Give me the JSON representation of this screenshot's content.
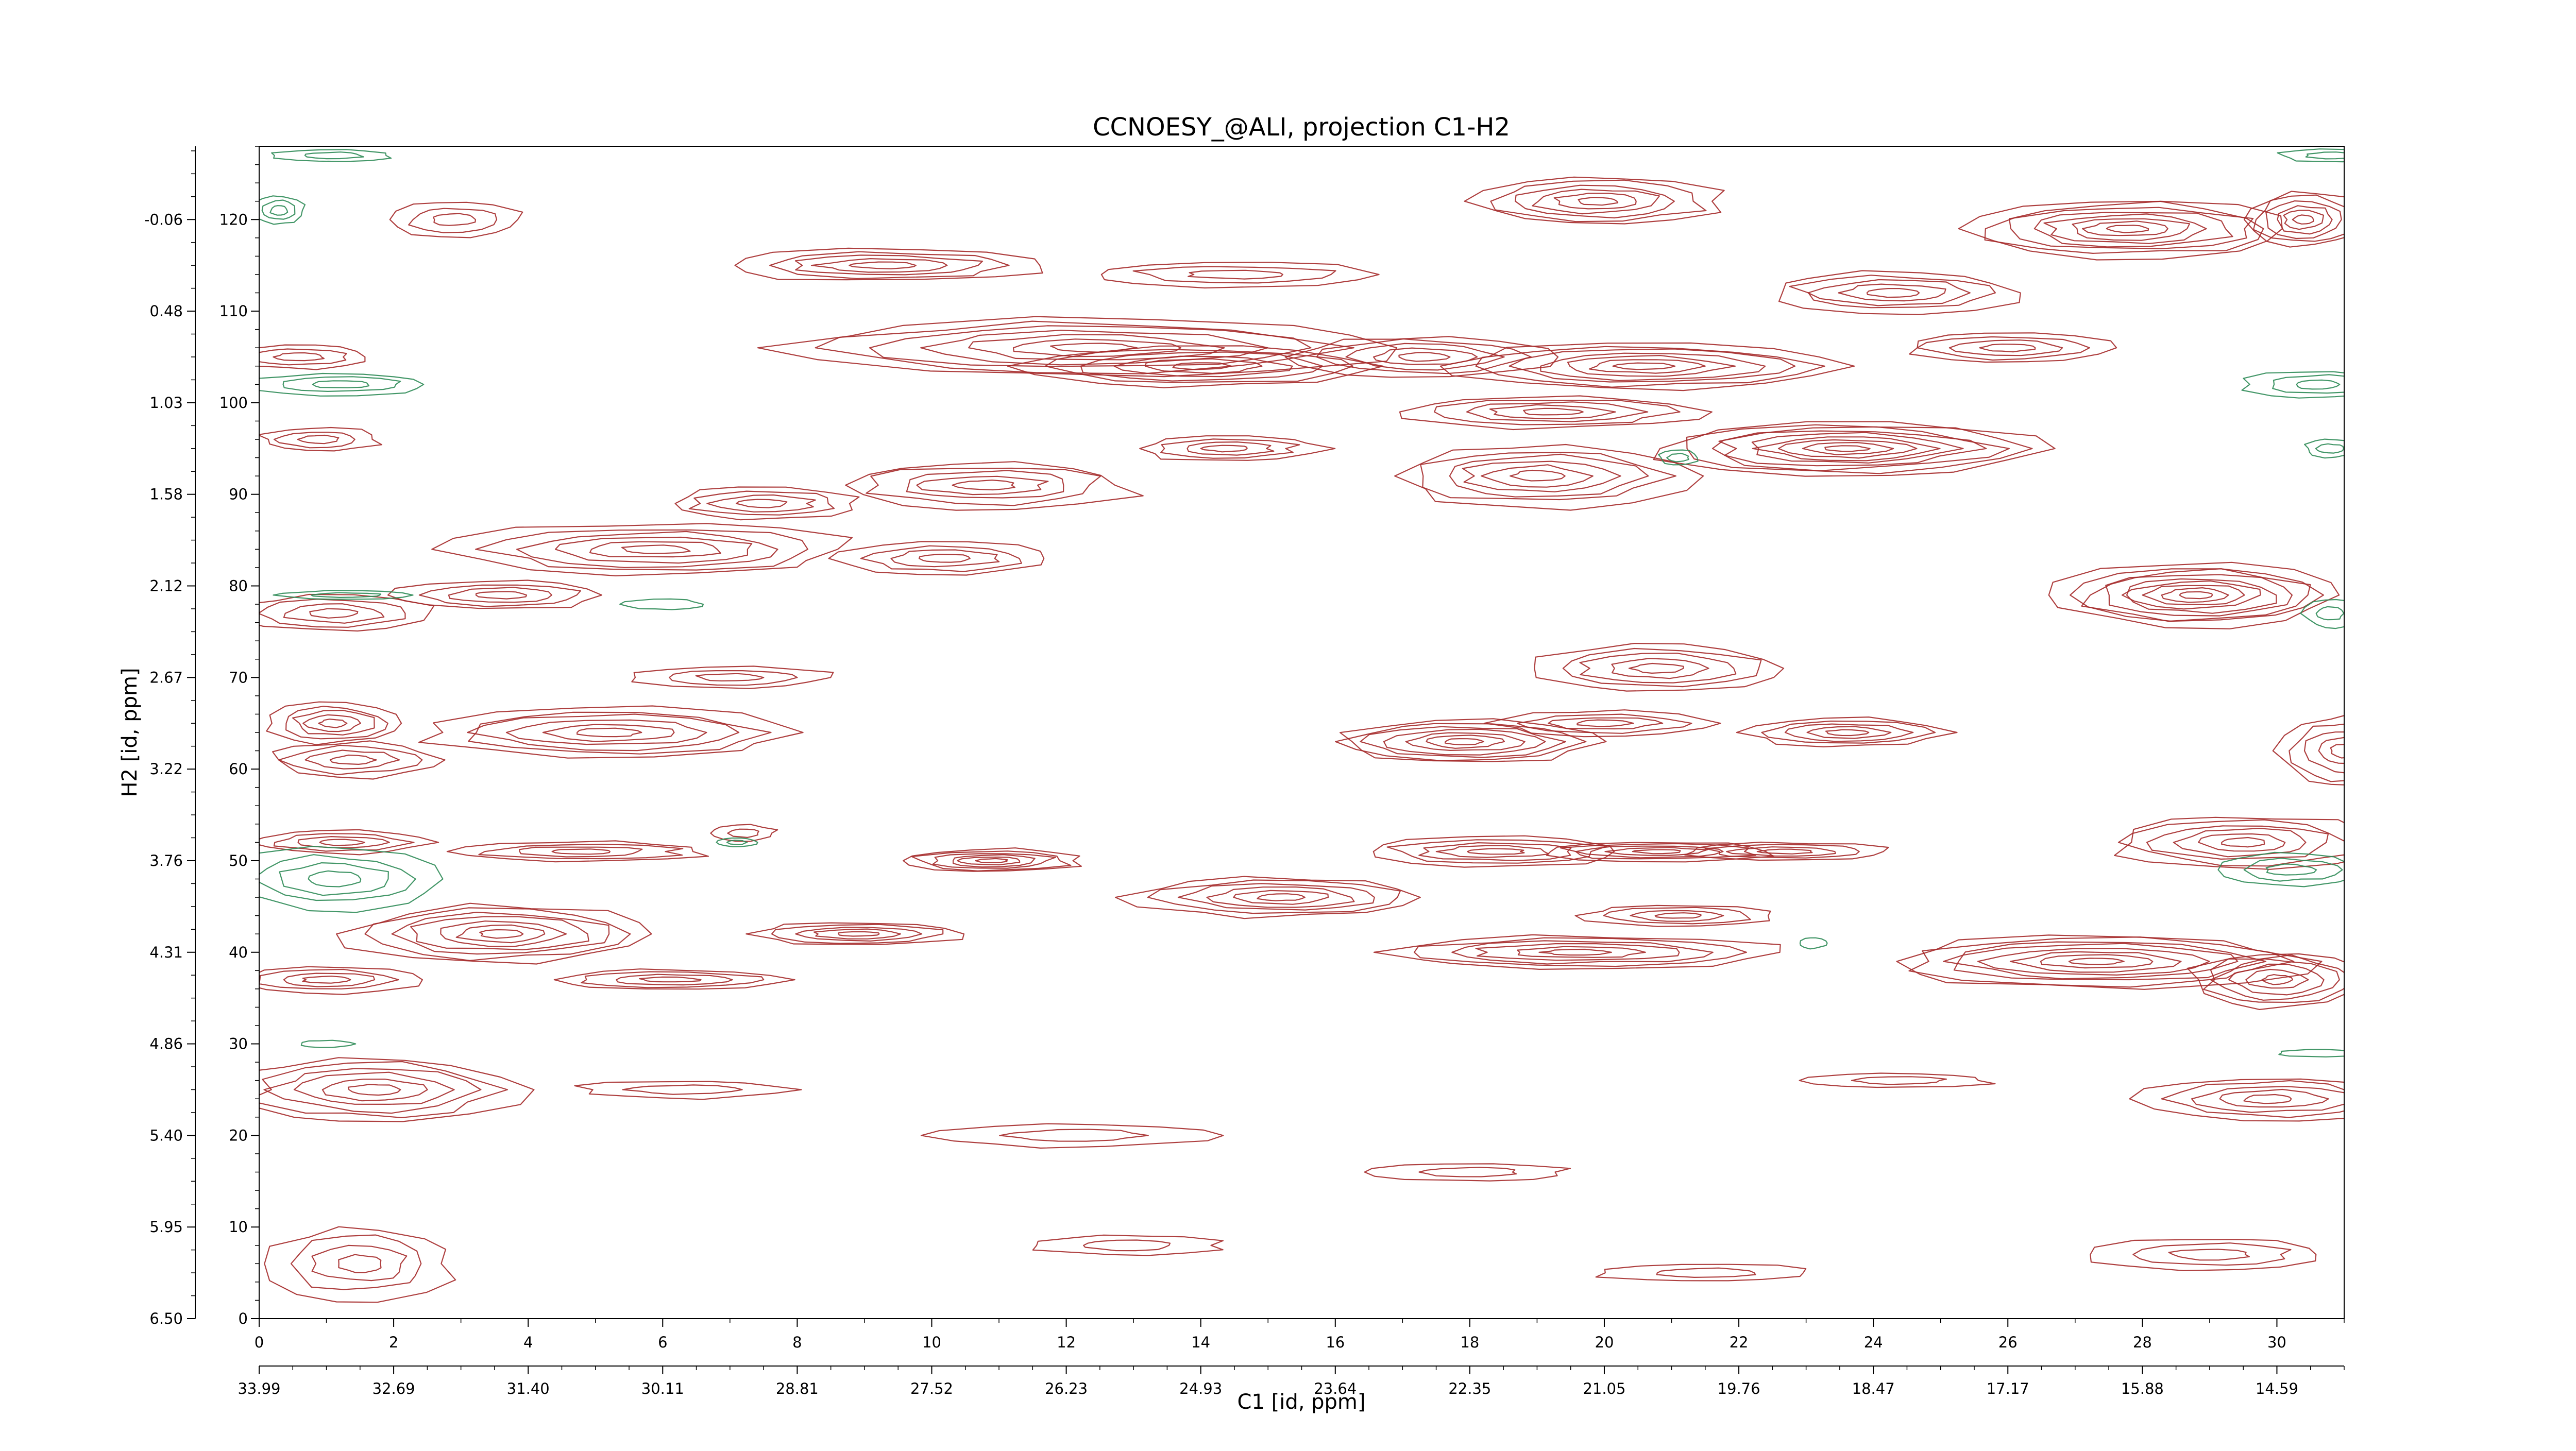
{
  "chart_data": {
    "type": "contour",
    "title": "CCNOESY_@ALI, projection C1-H2",
    "xlabel": "C1 [id, ppm]",
    "ylabel": "H2 [id, ppm]",
    "xlim": [
      0,
      31
    ],
    "ylim": [
      0,
      128
    ],
    "x_index_ticks": [
      "0",
      "2",
      "4",
      "6",
      "8",
      "10",
      "12",
      "14",
      "16",
      "18",
      "20",
      "22",
      "24",
      "26",
      "28",
      "30"
    ],
    "x_ppm_ticks": [
      "33.99",
      "32.69",
      "31.40",
      "30.11",
      "28.81",
      "27.52",
      "26.23",
      "24.93",
      "23.64",
      "22.35",
      "21.05",
      "19.76",
      "18.47",
      "17.17",
      "15.88",
      "14.59"
    ],
    "y_index_ticks": [
      "0",
      "10",
      "20",
      "30",
      "40",
      "50",
      "60",
      "70",
      "80",
      "90",
      "100",
      "110",
      "120"
    ],
    "y_ppm_ticks": [
      "6.50",
      "5.95",
      "5.40",
      "4.86",
      "4.31",
      "3.76",
      "3.22",
      "2.67",
      "2.12",
      "1.58",
      "1.03",
      "0.48",
      "-0.06"
    ],
    "grid": false,
    "colors": {
      "positive": "#a52a2a",
      "negative": "#2e8b57"
    },
    "series": [
      {
        "sign": "positive",
        "peaks": [
          {
            "x": 19.9,
            "y": 122,
            "rx": 1.9,
            "ry": 2.6,
            "levels": 6
          },
          {
            "x": 27.8,
            "y": 119,
            "rx": 2.5,
            "ry": 3.2,
            "levels": 8
          },
          {
            "x": 30.4,
            "y": 120,
            "rx": 0.9,
            "ry": 3.0,
            "levels": 6
          },
          {
            "x": 2.9,
            "y": 120,
            "rx": 1.0,
            "ry": 2.0,
            "levels": 3
          },
          {
            "x": 9.3,
            "y": 115,
            "rx": 2.4,
            "ry": 1.8,
            "levels": 5
          },
          {
            "x": 14.5,
            "y": 114,
            "rx": 2.2,
            "ry": 1.4,
            "levels": 3
          },
          {
            "x": 24.3,
            "y": 112,
            "rx": 1.9,
            "ry": 2.3,
            "levels": 5
          },
          {
            "x": 26.0,
            "y": 106,
            "rx": 1.6,
            "ry": 1.7,
            "levels": 4
          },
          {
            "x": 12.4,
            "y": 106,
            "rx": 4.4,
            "ry": 3.2,
            "levels": 7
          },
          {
            "x": 14.0,
            "y": 104,
            "rx": 2.6,
            "ry": 2.3,
            "levels": 6
          },
          {
            "x": 17.3,
            "y": 105,
            "rx": 1.9,
            "ry": 2.3,
            "levels": 5
          },
          {
            "x": 20.6,
            "y": 104,
            "rx": 2.9,
            "ry": 2.6,
            "levels": 7
          },
          {
            "x": 19.2,
            "y": 99,
            "rx": 2.2,
            "ry": 1.8,
            "levels": 5
          },
          {
            "x": 23.6,
            "y": 95,
            "rx": 2.8,
            "ry": 3.0,
            "levels": 9
          },
          {
            "x": 19.0,
            "y": 92,
            "rx": 2.2,
            "ry": 3.5,
            "levels": 6
          },
          {
            "x": 14.4,
            "y": 95,
            "rx": 1.4,
            "ry": 1.4,
            "levels": 4
          },
          {
            "x": 10.8,
            "y": 91,
            "rx": 2.3,
            "ry": 2.6,
            "levels": 5
          },
          {
            "x": 7.5,
            "y": 89,
            "rx": 1.5,
            "ry": 1.8,
            "levels": 4
          },
          {
            "x": 0.9,
            "y": 96,
            "rx": 0.9,
            "ry": 1.3,
            "levels": 3
          },
          {
            "x": 0.6,
            "y": 105,
            "rx": 1.1,
            "ry": 1.3,
            "levels": 3
          },
          {
            "x": 5.9,
            "y": 84,
            "rx": 3.0,
            "ry": 2.8,
            "levels": 6
          },
          {
            "x": 10.2,
            "y": 83,
            "rx": 1.6,
            "ry": 1.8,
            "levels": 4
          },
          {
            "x": 3.6,
            "y": 79,
            "rx": 1.6,
            "ry": 1.6,
            "levels": 4
          },
          {
            "x": 1.1,
            "y": 77,
            "rx": 1.5,
            "ry": 2.0,
            "levels": 4
          },
          {
            "x": 28.8,
            "y": 79,
            "rx": 2.2,
            "ry": 3.5,
            "levels": 9
          },
          {
            "x": 20.8,
            "y": 71,
            "rx": 1.9,
            "ry": 2.6,
            "levels": 5
          },
          {
            "x": 7.0,
            "y": 70,
            "rx": 1.5,
            "ry": 1.2,
            "levels": 3
          },
          {
            "x": 1.1,
            "y": 65,
            "rx": 1.0,
            "ry": 2.2,
            "levels": 5
          },
          {
            "x": 5.2,
            "y": 64,
            "rx": 2.8,
            "ry": 2.8,
            "levels": 6
          },
          {
            "x": 1.4,
            "y": 61,
            "rx": 1.3,
            "ry": 2.0,
            "levels": 4
          },
          {
            "x": 17.9,
            "y": 63,
            "rx": 2.0,
            "ry": 2.4,
            "levels": 7
          },
          {
            "x": 20.0,
            "y": 65,
            "rx": 1.6,
            "ry": 1.4,
            "levels": 4
          },
          {
            "x": 23.6,
            "y": 64,
            "rx": 1.5,
            "ry": 1.6,
            "levels": 5
          },
          {
            "x": 31.0,
            "y": 62,
            "rx": 1.0,
            "ry": 4.0,
            "levels": 5
          },
          {
            "x": 1.2,
            "y": 52,
            "rx": 1.3,
            "ry": 1.3,
            "levels": 4
          },
          {
            "x": 4.8,
            "y": 51,
            "rx": 2.0,
            "ry": 1.1,
            "levels": 4
          },
          {
            "x": 7.2,
            "y": 53,
            "rx": 0.5,
            "ry": 0.9,
            "levels": 2
          },
          {
            "x": 10.9,
            "y": 50,
            "rx": 1.4,
            "ry": 1.3,
            "levels": 6
          },
          {
            "x": 18.4,
            "y": 51,
            "rx": 2.0,
            "ry": 1.6,
            "levels": 5
          },
          {
            "x": 20.8,
            "y": 51,
            "rx": 1.8,
            "ry": 1.1,
            "levels": 5
          },
          {
            "x": 22.7,
            "y": 51,
            "rx": 1.6,
            "ry": 1.0,
            "levels": 4
          },
          {
            "x": 29.5,
            "y": 52,
            "rx": 2.0,
            "ry": 3.0,
            "levels": 6
          },
          {
            "x": 15.2,
            "y": 46,
            "rx": 2.2,
            "ry": 2.2,
            "levels": 6
          },
          {
            "x": 21.1,
            "y": 44,
            "rx": 1.4,
            "ry": 1.2,
            "levels": 4
          },
          {
            "x": 3.6,
            "y": 42,
            "rx": 2.3,
            "ry": 3.2,
            "levels": 7
          },
          {
            "x": 8.9,
            "y": 42,
            "rx": 1.6,
            "ry": 1.3,
            "levels": 5
          },
          {
            "x": 19.6,
            "y": 40,
            "rx": 3.0,
            "ry": 1.8,
            "levels": 6
          },
          {
            "x": 1.0,
            "y": 37,
            "rx": 1.4,
            "ry": 1.5,
            "levels": 4
          },
          {
            "x": 6.1,
            "y": 37,
            "rx": 1.8,
            "ry": 1.1,
            "levels": 4
          },
          {
            "x": 27.3,
            "y": 39,
            "rx": 3.2,
            "ry": 3.0,
            "levels": 8
          },
          {
            "x": 30.0,
            "y": 37,
            "rx": 1.3,
            "ry": 3.2,
            "levels": 6
          },
          {
            "x": 1.7,
            "y": 25,
            "rx": 2.2,
            "ry": 3.6,
            "levels": 6
          },
          {
            "x": 6.3,
            "y": 25,
            "rx": 1.6,
            "ry": 1.0,
            "levels": 2
          },
          {
            "x": 12.1,
            "y": 20,
            "rx": 2.0,
            "ry": 1.3,
            "levels": 2
          },
          {
            "x": 29.9,
            "y": 24,
            "rx": 1.9,
            "ry": 2.4,
            "levels": 5
          },
          {
            "x": 24.4,
            "y": 26,
            "rx": 1.4,
            "ry": 0.8,
            "levels": 2
          },
          {
            "x": 18.0,
            "y": 16,
            "rx": 1.5,
            "ry": 1.0,
            "levels": 2
          },
          {
            "x": 1.5,
            "y": 6,
            "rx": 1.4,
            "ry": 4.0,
            "levels": 4
          },
          {
            "x": 29.0,
            "y": 7,
            "rx": 1.8,
            "ry": 1.8,
            "levels": 3
          },
          {
            "x": 12.9,
            "y": 8,
            "rx": 1.4,
            "ry": 1.1,
            "levels": 2
          },
          {
            "x": 21.5,
            "y": 5,
            "rx": 1.6,
            "ry": 1.0,
            "levels": 2
          }
        ]
      },
      {
        "sign": "negative",
        "peaks": [
          {
            "x": 0.3,
            "y": 121,
            "rx": 0.4,
            "ry": 1.6,
            "levels": 3
          },
          {
            "x": 1.1,
            "y": 127,
            "rx": 0.9,
            "ry": 0.7,
            "levels": 2
          },
          {
            "x": 1.2,
            "y": 102,
            "rx": 1.4,
            "ry": 1.2,
            "levels": 3
          },
          {
            "x": 30.6,
            "y": 102,
            "rx": 1.1,
            "ry": 1.5,
            "levels": 3
          },
          {
            "x": 30.8,
            "y": 127,
            "rx": 0.8,
            "ry": 0.7,
            "levels": 2
          },
          {
            "x": 21.1,
            "y": 94,
            "rx": 0.3,
            "ry": 0.9,
            "levels": 2
          },
          {
            "x": 30.8,
            "y": 95,
            "rx": 0.4,
            "ry": 1.0,
            "levels": 2
          },
          {
            "x": 30.8,
            "y": 77,
            "rx": 0.4,
            "ry": 1.6,
            "levels": 2
          },
          {
            "x": 1.3,
            "y": 79,
            "rx": 1.0,
            "ry": 0.5,
            "levels": 2
          },
          {
            "x": 6.0,
            "y": 78,
            "rx": 0.6,
            "ry": 0.6,
            "levels": 1
          },
          {
            "x": 1.1,
            "y": 48,
            "rx": 1.6,
            "ry": 3.4,
            "levels": 4
          },
          {
            "x": 7.1,
            "y": 52,
            "rx": 0.3,
            "ry": 0.5,
            "levels": 2
          },
          {
            "x": 30.2,
            "y": 49,
            "rx": 1.1,
            "ry": 1.8,
            "levels": 3
          },
          {
            "x": 23.1,
            "y": 41,
            "rx": 0.2,
            "ry": 0.6,
            "levels": 1
          },
          {
            "x": 1.0,
            "y": 30,
            "rx": 0.4,
            "ry": 0.4,
            "levels": 1
          },
          {
            "x": 30.6,
            "y": 29,
            "rx": 0.6,
            "ry": 0.4,
            "levels": 1
          }
        ]
      }
    ]
  }
}
